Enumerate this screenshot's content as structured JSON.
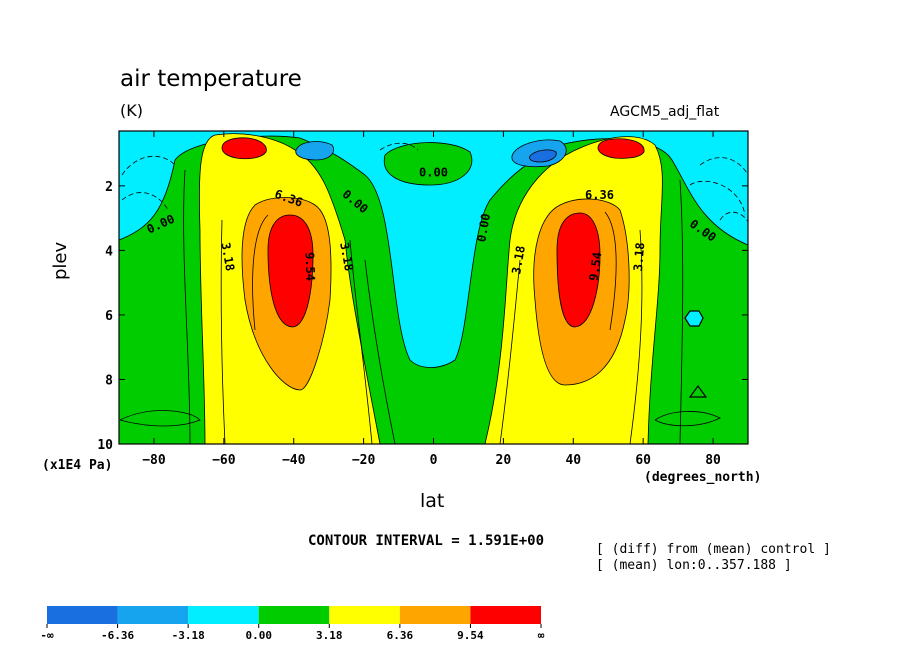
{
  "chart_data": {
    "type": "heatmap",
    "title": "air temperature",
    "units": "(K)",
    "dataset_label": "AGCM5_adj_flat",
    "xlabel": "lat",
    "x_units": "(degrees_north)",
    "ylabel": "plev",
    "y_units": "(x1E4 Pa)",
    "x_ticks": [
      -80,
      -60,
      -40,
      -20,
      0,
      20,
      40,
      60,
      80
    ],
    "y_ticks": [
      2,
      4,
      6,
      8,
      10
    ],
    "xlim": [
      -90,
      90
    ],
    "ylim": [
      10,
      0.3
    ],
    "contour_interval_text": "CONTOUR INTERVAL = 1.591E+00",
    "notes": [
      "[ (diff) from (mean) control ]",
      "[ (mean) lon:0..357.188 ]"
    ],
    "contour_labels": [
      {
        "text": "0.00",
        "lat": -78,
        "plev": 3.2,
        "rotate": -25
      },
      {
        "text": "3.18",
        "lat": -59,
        "plev": 4.2,
        "rotate": 80
      },
      {
        "text": "6.36",
        "lat": -41.5,
        "plev": 2.4,
        "rotate": 20
      },
      {
        "text": "9.54",
        "lat": -35.5,
        "plev": 4.5,
        "rotate": 88
      },
      {
        "text": "3.18",
        "lat": -25,
        "plev": 4.2,
        "rotate": 80
      },
      {
        "text": "0.00",
        "lat": -22.5,
        "plev": 2.5,
        "rotate": 40
      },
      {
        "text": "0.00",
        "lat": 0,
        "plev": 1.6,
        "rotate": 0
      },
      {
        "text": "0.00",
        "lat": 14.5,
        "plev": 3.3,
        "rotate": -80
      },
      {
        "text": "3.18",
        "lat": 24.5,
        "plev": 4.3,
        "rotate": -80
      },
      {
        "text": "9.54",
        "lat": 46.5,
        "plev": 4.5,
        "rotate": -82
      },
      {
        "text": "6.36",
        "lat": 47.5,
        "plev": 2.3,
        "rotate": 0
      },
      {
        "text": "3.18",
        "lat": 59,
        "plev": 4.2,
        "rotate": -85
      },
      {
        "text": "0.00",
        "lat": 77,
        "plev": 3.4,
        "rotate": 35
      }
    ],
    "legend": {
      "colors": [
        "#1a6fe0",
        "#16a4ee",
        "#00eeff",
        "#00cc00",
        "#ffff00",
        "#ffa500",
        "#ff0000"
      ],
      "labels": [
        "-∞",
        "-6.36",
        "-3.18",
        "0.00",
        "3.18",
        "6.36",
        "9.54",
        "∞"
      ]
    }
  }
}
